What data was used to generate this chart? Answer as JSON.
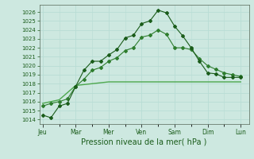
{
  "xlabel": "Pression niveau de la mer( hPa )",
  "background_color": "#cde8e0",
  "grid_color": "#b8ddd5",
  "line_color_dark": "#1a5c1a",
  "line_color_mid": "#2e7d2e",
  "line_color_light": "#4da84d",
  "ylim": [
    1013.5,
    1026.8
  ],
  "yticks": [
    1014,
    1015,
    1016,
    1017,
    1018,
    1019,
    1020,
    1021,
    1022,
    1023,
    1024,
    1025,
    1026
  ],
  "day_labels": [
    "Jeu",
    "Mar",
    "Mer",
    "Ven",
    "Sam",
    "Dim",
    "Lun"
  ],
  "day_positions": [
    0,
    2,
    4,
    6,
    8,
    10,
    12
  ],
  "xlim": [
    -0.2,
    12.5
  ],
  "series1": {
    "x": [
      0,
      0.5,
      1,
      1.5,
      2,
      2.5,
      3,
      3.5,
      4,
      4.5,
      5,
      5.5,
      6,
      6.5,
      7,
      7.5,
      8,
      8.5,
      9,
      9.5,
      10,
      10.5,
      11,
      11.5,
      12
    ],
    "y": [
      1014.5,
      1014.2,
      1015.5,
      1015.8,
      1017.7,
      1019.5,
      1020.5,
      1020.5,
      1021.2,
      1021.8,
      1023.1,
      1023.4,
      1024.7,
      1025.0,
      1026.2,
      1025.9,
      1024.4,
      1023.3,
      1022.0,
      1020.5,
      1019.2,
      1019.1,
      1018.7,
      1018.7,
      1018.7
    ]
  },
  "series2": {
    "x": [
      0,
      0.5,
      1,
      1.5,
      2,
      2.5,
      3,
      3.5,
      4,
      4.5,
      5,
      5.5,
      6,
      6.5,
      7,
      7.5,
      8,
      8.5,
      9,
      9.5,
      10,
      10.5,
      11,
      11.5,
      12
    ],
    "y": [
      1015.5,
      1015.8,
      1016.0,
      1016.3,
      1017.7,
      1018.5,
      1019.5,
      1019.8,
      1020.5,
      1020.9,
      1021.7,
      1022.0,
      1023.2,
      1023.4,
      1024.0,
      1023.5,
      1022.0,
      1022.0,
      1021.8,
      1020.8,
      1020.0,
      1019.6,
      1019.2,
      1019.0,
      1018.8
    ]
  },
  "series3": {
    "x": [
      0,
      1,
      2,
      3,
      4,
      5,
      6,
      7,
      8,
      9,
      10,
      11,
      12
    ],
    "y": [
      1015.8,
      1016.2,
      1017.8,
      1018.0,
      1018.2,
      1018.2,
      1018.2,
      1018.2,
      1018.2,
      1018.2,
      1018.2,
      1018.2,
      1018.2
    ]
  }
}
